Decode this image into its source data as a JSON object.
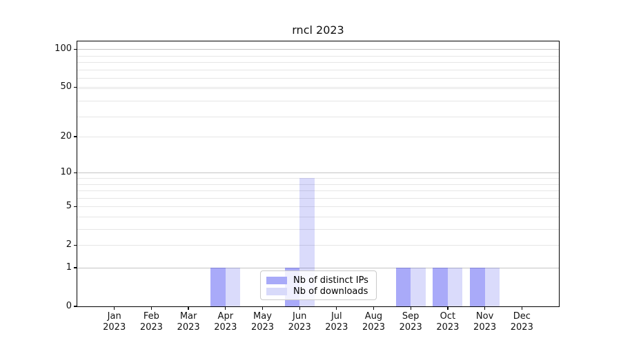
{
  "chart_data": {
    "type": "bar",
    "title": "rncl 2023",
    "x_tick_year": "2023",
    "months": [
      "Jan",
      "Feb",
      "Mar",
      "Apr",
      "May",
      "Jun",
      "Jul",
      "Aug",
      "Sep",
      "Oct",
      "Nov",
      "Dec"
    ],
    "series": [
      {
        "name": "Nb of distinct IPs",
        "swatch_color": "#a8aaf8",
        "bar_rgba": "rgba(10,12,237,0.35)",
        "values": [
          0,
          0,
          0,
          1,
          0,
          1,
          0,
          0,
          1,
          1,
          1,
          0
        ]
      },
      {
        "name": "Nb of downloads",
        "swatch_color": "#d8dafa",
        "bar_rgba": "rgba(5,15,225,0.15)",
        "values": [
          0,
          0,
          0,
          1,
          0,
          9,
          0,
          0,
          1,
          1,
          1,
          0
        ]
      }
    ],
    "y_ticks": [
      0,
      1,
      2,
      5,
      10,
      20,
      50,
      100
    ],
    "y_scale": "log1p",
    "ylim": [
      0,
      115
    ],
    "grid": {
      "orientation": "horizontal",
      "major_values": [
        1,
        10,
        100
      ],
      "minor_values": [
        2,
        3,
        4,
        5,
        6,
        7,
        8,
        9,
        20,
        29,
        39,
        49,
        50,
        59,
        69,
        79,
        89
      ]
    },
    "legend": {
      "position": "lower center",
      "items": [
        "Nb of distinct IPs",
        "Nb of downloads"
      ]
    }
  }
}
